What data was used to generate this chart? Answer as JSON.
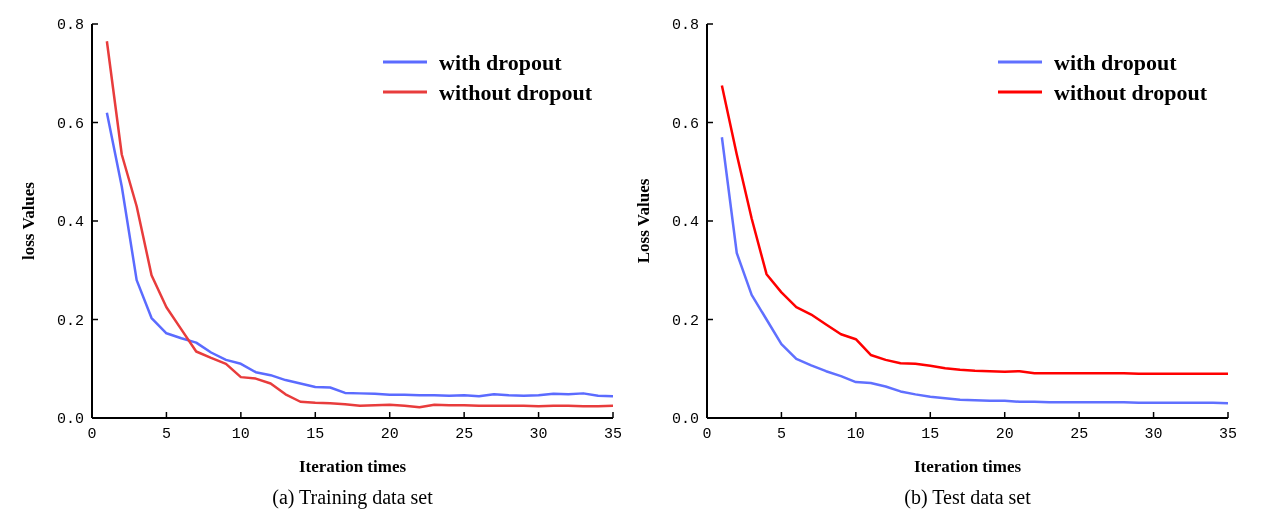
{
  "chart_data": [
    {
      "type": "line",
      "xlabel": "Iteration times",
      "ylabel": "loss Values",
      "annotations": [
        "(a) Training data set"
      ],
      "x": [
        1,
        2,
        3,
        4,
        5,
        6,
        7,
        8,
        9,
        10,
        11,
        12,
        13,
        14,
        15,
        16,
        17,
        18,
        19,
        20,
        21,
        22,
        23,
        24,
        25,
        26,
        27,
        28,
        29,
        30,
        31,
        32,
        33,
        34,
        35
      ],
      "series": [
        {
          "name": "with dropout",
          "color": "#5b6bff",
          "values": [
            0.62,
            0.47,
            0.28,
            0.203,
            0.172,
            0.162,
            0.153,
            0.133,
            0.118,
            0.11,
            0.093,
            0.087,
            0.077,
            0.07,
            0.063,
            0.062,
            0.051,
            0.05,
            0.049,
            0.047,
            0.047,
            0.046,
            0.046,
            0.045,
            0.046,
            0.044,
            0.048,
            0.046,
            0.045,
            0.046,
            0.049,
            0.048,
            0.05,
            0.045,
            0.044
          ]
        },
        {
          "name": "without dropout",
          "color": "#e83c3c",
          "values": [
            0.765,
            0.535,
            0.43,
            0.29,
            0.225,
            0.18,
            0.135,
            0.122,
            0.11,
            0.083,
            0.08,
            0.07,
            0.048,
            0.033,
            0.031,
            0.03,
            0.028,
            0.025,
            0.026,
            0.027,
            0.025,
            0.022,
            0.027,
            0.026,
            0.026,
            0.025,
            0.025,
            0.025,
            0.025,
            0.024,
            0.025,
            0.025,
            0.024,
            0.024,
            0.025
          ]
        }
      ],
      "xlim": [
        0,
        35
      ],
      "xticks": [
        0,
        5,
        10,
        15,
        20,
        25,
        30,
        35
      ],
      "ylim": [
        0,
        0.8
      ],
      "yticks": [
        {
          "value": 0,
          "label": "0.0"
        },
        0.2,
        0.4,
        0.6,
        0.8
      ],
      "legend": "top right",
      "grid": false
    },
    {
      "type": "line",
      "xlabel": "Iteration times",
      "ylabel": "Loss Values",
      "annotations": [
        "(b) Test data set"
      ],
      "x": [
        1,
        2,
        3,
        4,
        5,
        6,
        7,
        8,
        9,
        10,
        11,
        12,
        13,
        14,
        15,
        16,
        17,
        18,
        19,
        20,
        21,
        22,
        23,
        24,
        25,
        26,
        27,
        28,
        29,
        30,
        31,
        32,
        33,
        34,
        35
      ],
      "series": [
        {
          "name": "with dropout",
          "color": "#6070ff",
          "values": [
            0.57,
            0.335,
            0.25,
            0.2,
            0.15,
            0.12,
            0.107,
            0.095,
            0.085,
            0.073,
            0.071,
            0.064,
            0.054,
            0.048,
            0.043,
            0.04,
            0.037,
            0.036,
            0.035,
            0.035,
            0.033,
            0.033,
            0.032,
            0.032,
            0.032,
            0.032,
            0.032,
            0.032,
            0.031,
            0.031,
            0.031,
            0.031,
            0.031,
            0.031,
            0.03
          ]
        },
        {
          "name": "without dropout",
          "color": "#ff0000",
          "values": [
            0.675,
            0.535,
            0.405,
            0.292,
            0.255,
            0.225,
            0.21,
            0.19,
            0.17,
            0.16,
            0.128,
            0.118,
            0.111,
            0.11,
            0.106,
            0.101,
            0.098,
            0.096,
            0.095,
            0.094,
            0.095,
            0.091,
            0.091,
            0.091,
            0.091,
            0.091,
            0.091,
            0.091,
            0.09,
            0.09,
            0.09,
            0.09,
            0.09,
            0.09,
            0.09
          ]
        }
      ],
      "xlim": [
        0,
        35
      ],
      "xticks": [
        0,
        5,
        10,
        15,
        20,
        25,
        30,
        35
      ],
      "ylim": [
        0,
        0.8
      ],
      "yticks": [
        {
          "value": 0,
          "label": "0.0"
        },
        0.2,
        0.4,
        0.6,
        0.8
      ],
      "legend": "top right",
      "grid": false
    }
  ]
}
